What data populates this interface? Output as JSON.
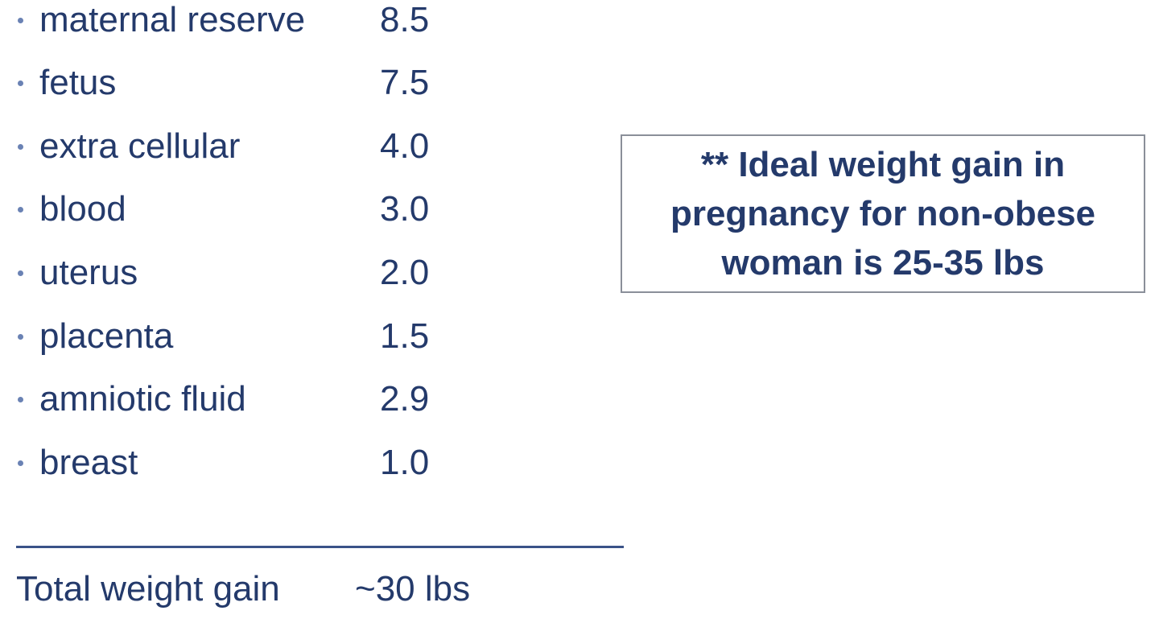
{
  "items": [
    {
      "label": "maternal reserve",
      "value": "8.5"
    },
    {
      "label": "fetus",
      "value": "7.5"
    },
    {
      "label": "extra cellular",
      "value": "4.0"
    },
    {
      "label": "blood",
      "value": "3.0"
    },
    {
      "label": "uterus",
      "value": "2.0"
    },
    {
      "label": "placenta",
      "value": "1.5"
    },
    {
      "label": "amniotic fluid",
      "value": "2.9"
    },
    {
      "label": "breast",
      "value": "1.0"
    }
  ],
  "total": {
    "label": "Total weight gain",
    "value": "~30 lbs"
  },
  "callout": {
    "line1": "** Ideal weight gain in",
    "line2": "pregnancy for non-obese",
    "line3": "woman is 25-35 lbs"
  },
  "colors": {
    "text": "#243a6b",
    "bullet": "#6a82b4",
    "rule": "#3a5288",
    "border": "#8a8f99"
  }
}
